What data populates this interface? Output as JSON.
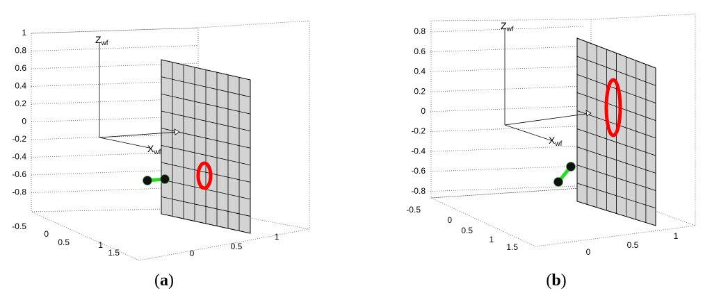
{
  "panels": [
    {
      "z_ticks": [
        "1",
        "0.8",
        "0.6",
        "0.4",
        "0.2",
        "0",
        "-0.2",
        "-0.4",
        "-0.6",
        "-0.8"
      ],
      "y_ticks": [
        "-0.5",
        "0",
        "0.5",
        "1",
        "1.5"
      ],
      "x_ticks": [
        "0",
        "0.5",
        "1"
      ],
      "z_axis_label": {
        "letter": "Z",
        "subscript": "wf"
      },
      "x_axis_label": {
        "letter": "X",
        "subscript": "wf"
      },
      "caption": {
        "open": "(",
        "label": "a",
        "close": ")"
      }
    },
    {
      "z_ticks": [
        "0.8",
        "0.6",
        "0.4",
        "0.2",
        "0",
        "-0.2",
        "-0.4",
        "-0.6",
        "-0.8"
      ],
      "y_ticks": [
        "-0.5",
        "0",
        "0.5",
        "1",
        "1.5"
      ],
      "x_ticks": [
        "0",
        "0.5",
        "1"
      ],
      "z_axis_label": {
        "letter": "Z",
        "subscript": "wf"
      },
      "x_axis_label": {
        "letter": "X",
        "subscript": "wf"
      },
      "caption": {
        "open": "(",
        "label": "b",
        "close": ")"
      }
    }
  ]
}
